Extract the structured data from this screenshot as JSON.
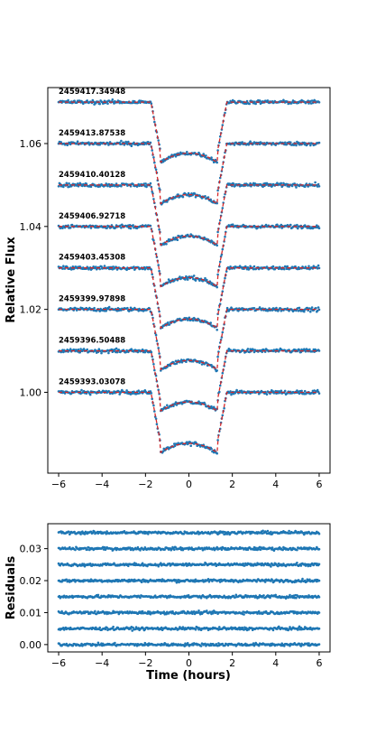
{
  "chart_data": [
    {
      "type": "scatter",
      "title": "",
      "xlabel": "",
      "ylabel": "Relative Flux",
      "xlim": [
        -6.5,
        6.5
      ],
      "ylim": [
        0.9805,
        1.0735
      ],
      "xticks": [
        -6,
        -4,
        -2,
        0,
        2,
        4,
        6
      ],
      "xtick_labels": [
        "−6",
        "−4",
        "−2",
        "0",
        "2",
        "4",
        "6"
      ],
      "yticks": [
        1.0,
        1.02,
        1.04,
        1.06
      ],
      "ytick_labels": [
        "1.00",
        "1.02",
        "1.04",
        "1.06"
      ],
      "grid": false,
      "point_color": "#1f77b4",
      "model_color": "#d62728",
      "transit": {
        "depth": 0.0145,
        "ingress_start": -1.75,
        "ingress_end": -1.3,
        "egress_start": 1.3,
        "egress_end": 1.75
      },
      "series": [
        {
          "name": "2459393.03078",
          "offset": 0.0
        },
        {
          "name": "2459396.50488",
          "offset": 0.01
        },
        {
          "name": "2459399.97898",
          "offset": 0.02
        },
        {
          "name": "2459403.45308",
          "offset": 0.03
        },
        {
          "name": "2459406.92718",
          "offset": 0.04
        },
        {
          "name": "2459410.40128",
          "offset": 0.05
        },
        {
          "name": "2459413.87538",
          "offset": 0.06
        },
        {
          "name": "2459417.34948",
          "offset": 0.07
        }
      ]
    },
    {
      "type": "scatter",
      "title": "",
      "xlabel": "Time (hours)",
      "ylabel": "Residuals",
      "xlim": [
        -6.5,
        6.5
      ],
      "ylim": [
        -0.0023,
        0.0378
      ],
      "xticks": [
        -6,
        -4,
        -2,
        0,
        2,
        4,
        6
      ],
      "xtick_labels": [
        "−6",
        "−4",
        "−2",
        "0",
        "2",
        "4",
        "6"
      ],
      "yticks": [
        0.0,
        0.01,
        0.02,
        0.03
      ],
      "ytick_labels": [
        "0.00",
        "0.01",
        "0.02",
        "0.03"
      ],
      "grid": false,
      "point_color": "#1f77b4",
      "offsets": [
        0.0,
        0.005,
        0.01,
        0.015,
        0.02,
        0.025,
        0.03,
        0.035
      ]
    }
  ]
}
